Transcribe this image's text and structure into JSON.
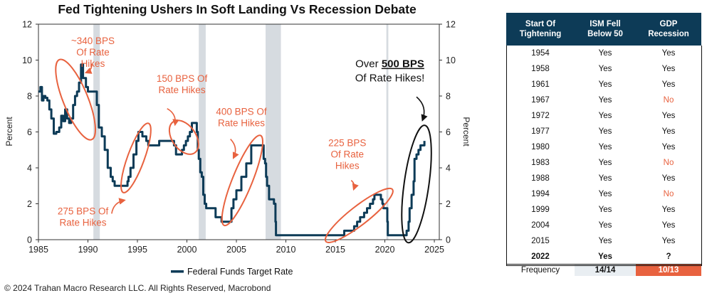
{
  "chart_data": {
    "type": "line",
    "title": "Fed Tightening Ushers In Soft Landing Vs Recession Debate",
    "ylabel_left": "Percent",
    "ylabel_right": "Percent",
    "xlim": [
      1985,
      2025.5
    ],
    "ylim": [
      0,
      12
    ],
    "x_ticks": [
      1985,
      1990,
      1995,
      2000,
      2005,
      2010,
      2015,
      2020,
      2025
    ],
    "y_ticks": [
      0,
      2,
      4,
      6,
      8,
      10,
      12
    ],
    "legend": {
      "position": "bottom-center",
      "label": "Federal Funds Target Rate"
    },
    "line_color": "#0d3b57",
    "recession_color": "#d6dbe0",
    "annotation_color": "#e8623f",
    "recessions": [
      [
        1990.55,
        1991.2
      ],
      [
        2001.2,
        2001.9
      ],
      [
        2007.95,
        2009.5
      ],
      [
        2020.15,
        2020.35
      ]
    ],
    "series": [
      {
        "name": "Federal Funds Target Rate",
        "x": [
          1985.0,
          1985.2,
          1985.35,
          1985.5,
          1985.7,
          1985.9,
          1986.1,
          1986.3,
          1986.55,
          1986.8,
          1987.1,
          1987.3,
          1987.5,
          1987.7,
          1987.9,
          1988.1,
          1988.3,
          1988.5,
          1988.7,
          1988.9,
          1989.1,
          1989.3,
          1989.5,
          1989.8,
          1990.0,
          1990.5,
          1990.9,
          1991.1,
          1991.4,
          1991.7,
          1992.0,
          1992.3,
          1992.5,
          1992.7,
          1993.0,
          1993.5,
          1994.0,
          1994.1,
          1994.3,
          1994.6,
          1994.9,
          1995.1,
          1995.5,
          1995.9,
          1996.1,
          1996.5,
          1997.2,
          1998.0,
          1998.7,
          1998.9,
          1999.0,
          1999.5,
          1999.7,
          1999.9,
          2000.1,
          2000.3,
          2000.5,
          2000.9,
          2001.0,
          2001.1,
          2001.2,
          2001.35,
          2001.5,
          2001.65,
          2001.8,
          2001.95,
          2002.9,
          2003.5,
          2004.0,
          2004.5,
          2004.7,
          2005.0,
          2005.5,
          2006.0,
          2006.5,
          2007.0,
          2007.6,
          2007.75,
          2007.9,
          2008.0,
          2008.1,
          2008.3,
          2008.8,
          2008.95,
          2009.0,
          2010.0,
          2012.0,
          2014.0,
          2015.9,
          2016.9,
          2017.2,
          2017.5,
          2017.9,
          2018.2,
          2018.5,
          2018.8,
          2018.95,
          2019.5,
          2019.6,
          2019.75,
          2019.85,
          2020.15,
          2020.25,
          2020.3,
          2021.0,
          2022.0,
          2022.2,
          2022.4,
          2022.5,
          2022.7,
          2022.9,
          2023.0,
          2023.2,
          2023.4,
          2023.6,
          2024.0
        ],
        "y": [
          8.25,
          8.5,
          7.75,
          8.0,
          7.9,
          7.75,
          7.25,
          6.75,
          5.9,
          6.0,
          6.25,
          6.9,
          6.6,
          7.25,
          6.75,
          6.5,
          6.75,
          7.5,
          8.0,
          8.25,
          8.75,
          9.75,
          9.0,
          8.5,
          8.25,
          8.25,
          7.5,
          6.25,
          5.75,
          5.0,
          4.0,
          3.5,
          3.25,
          3.0,
          3.0,
          3.0,
          3.25,
          3.5,
          4.0,
          4.75,
          5.5,
          6.0,
          5.75,
          5.5,
          5.25,
          5.25,
          5.5,
          5.5,
          5.25,
          4.75,
          4.75,
          5.0,
          5.25,
          5.5,
          5.75,
          6.0,
          6.5,
          6.5,
          6.0,
          5.0,
          4.5,
          3.75,
          3.5,
          2.5,
          2.0,
          1.75,
          1.25,
          1.0,
          1.0,
          1.75,
          2.25,
          2.75,
          3.5,
          4.25,
          5.25,
          5.25,
          5.25,
          4.5,
          4.25,
          3.5,
          3.0,
          2.25,
          2.0,
          1.0,
          0.25,
          0.25,
          0.25,
          0.25,
          0.5,
          0.75,
          1.0,
          1.25,
          1.5,
          1.75,
          2.0,
          2.25,
          2.5,
          2.5,
          2.25,
          2.0,
          1.75,
          1.75,
          1.0,
          0.25,
          0.25,
          0.25,
          0.5,
          1.0,
          1.75,
          2.5,
          3.25,
          4.5,
          4.75,
          5.0,
          5.25,
          5.5
        ]
      }
    ],
    "annotations": [
      {
        "id": "340",
        "lines": [
          "~340 BPS",
          "Of Rate",
          "Hikes"
        ],
        "label_at": [
          1990.5,
          10.9
        ],
        "arrow_from": [
          1990.4,
          9.8
        ],
        "arrow_to": [
          1989.8,
          9.3
        ],
        "ellipse": {
          "cx": 1988.75,
          "cy": 7.8,
          "rx": 1.25,
          "ry": 2.4,
          "angle": -22
        }
      },
      {
        "id": "275",
        "lines": [
          "275 BPS Of",
          "Rate Hikes"
        ],
        "label_at": [
          1989.5,
          1.4
        ],
        "arrow_from": [
          1992.4,
          1.45
        ],
        "arrow_to": [
          1993.7,
          2.2
        ],
        "ellipse": {
          "cx": 1994.85,
          "cy": 4.55,
          "rx": 0.85,
          "ry": 2.05,
          "angle": 20
        }
      },
      {
        "id": "150",
        "lines": [
          "150 BPS Of",
          "Rate Hikes"
        ],
        "label_at": [
          1999.5,
          8.8
        ],
        "arrow_from": [
          1998.0,
          7.3
        ],
        "arrow_to": [
          1998.8,
          6.4
        ],
        "ellipse": {
          "cx": 1999.7,
          "cy": 5.7,
          "rx": 1.2,
          "ry": 1.05,
          "angle": -35
        }
      },
      {
        "id": "400",
        "lines": [
          "400 BPS Of",
          "Rate Hikes"
        ],
        "label_at": [
          2005.5,
          6.95
        ],
        "arrow_from": [
          2004.4,
          5.6
        ],
        "arrow_to": [
          2004.7,
          4.55
        ],
        "ellipse": {
          "cx": 2005.6,
          "cy": 3.3,
          "rx": 1.0,
          "ry": 2.7,
          "angle": 22
        }
      },
      {
        "id": "225",
        "lines": [
          "225 BPS",
          "Of Rate",
          "Hikes"
        ],
        "label_at": [
          2016.2,
          5.2
        ],
        "arrow_from": [
          2016.6,
          3.3
        ],
        "arrow_to": [
          2016.85,
          2.8
        ],
        "ellipse": {
          "cx": 2017.4,
          "cy": 1.35,
          "rx": 0.95,
          "ry": 2.35,
          "angle": 52
        }
      },
      {
        "id": "500",
        "lines": [
          "Over 500 BPS",
          "Of Rate Hikes!"
        ],
        "emphasis": "500 BPS",
        "label_at": [
          2020.5,
          9.6
        ],
        "arrow_from": [
          2023.2,
          7.95
        ],
        "arrow_to": [
          2023.8,
          6.65
        ],
        "ellipse": {
          "cx": 2023.2,
          "cy": 3.1,
          "rx": 1.25,
          "ry": 3.3,
          "angle": 8
        }
      }
    ]
  },
  "table": {
    "headers": [
      {
        "line1": "Start Of",
        "line2": "Tightening"
      },
      {
        "line1": "ISM Fell",
        "line2": "Below 50"
      },
      {
        "line1": "GDP",
        "line2": "Recession"
      }
    ],
    "rows": [
      {
        "year": "1954",
        "ism": "Yes",
        "gdp": "Yes"
      },
      {
        "year": "1958",
        "ism": "Yes",
        "gdp": "Yes"
      },
      {
        "year": "1961",
        "ism": "Yes",
        "gdp": "Yes"
      },
      {
        "year": "1967",
        "ism": "Yes",
        "gdp": "No"
      },
      {
        "year": "1972",
        "ism": "Yes",
        "gdp": "Yes"
      },
      {
        "year": "1977",
        "ism": "Yes",
        "gdp": "Yes"
      },
      {
        "year": "1980",
        "ism": "Yes",
        "gdp": "Yes"
      },
      {
        "year": "1983",
        "ism": "Yes",
        "gdp": "No"
      },
      {
        "year": "1988",
        "ism": "Yes",
        "gdp": "Yes"
      },
      {
        "year": "1994",
        "ism": "Yes",
        "gdp": "No"
      },
      {
        "year": "1999",
        "ism": "Yes",
        "gdp": "Yes"
      },
      {
        "year": "2004",
        "ism": "Yes",
        "gdp": "Yes"
      },
      {
        "year": "2015",
        "ism": "Yes",
        "gdp": "Yes"
      }
    ],
    "current": {
      "year": "2022",
      "ism": "Yes",
      "gdp": "?"
    },
    "frequency": {
      "label": "Frequency",
      "ism": "14/14",
      "gdp": "10/13"
    }
  },
  "footer": "© 2024 Trahan Macro Research LLC. All Rights Reserved, Macrobond"
}
